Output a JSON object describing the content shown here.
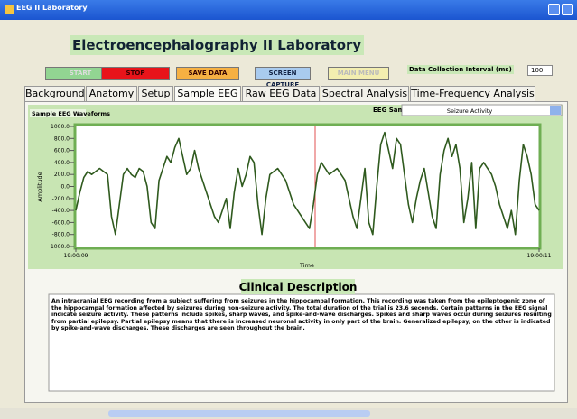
{
  "window": {
    "title": "EEG II Laboratory"
  },
  "header": {
    "title": "Electroencephalography II Laboratory"
  },
  "buttons": [
    "START",
    "STOP",
    "SAVE DATA",
    "SCREEN CAPTURE",
    "MAIN MENU"
  ],
  "interval": {
    "label": "Data Collection Interval (ms)",
    "value": "100"
  },
  "tabs": [
    "Background",
    "Anatomy",
    "Setup",
    "Sample EEG",
    "Raw EEG Data",
    "Spectral Analysis",
    "Time-Frequency Analysis"
  ],
  "samples": {
    "label": "EEG Samples",
    "value": "Seizure Activity"
  },
  "chart_data": {
    "type": "line",
    "title": "Sample EEG Waveforms",
    "y_label": "Amplitude",
    "x_label": "Time",
    "xticks": [
      "19:00:09",
      "19:00:11"
    ],
    "ylim": [
      -1000,
      1000
    ],
    "yticks": [
      {
        "value": 1000,
        "label": "1000.0"
      },
      {
        "value": 800,
        "label": "800.0"
      },
      {
        "value": 600,
        "label": "600.0"
      },
      {
        "value": 400,
        "label": "400.0"
      },
      {
        "value": 200,
        "label": "200.0"
      },
      {
        "value": 0,
        "label": "0.0"
      },
      {
        "value": -200,
        "label": "-200.0"
      },
      {
        "value": -400,
        "label": "-400.0"
      },
      {
        "value": -600,
        "label": "-600.0"
      },
      {
        "value": -800,
        "label": "-800.0"
      },
      {
        "value": -1000,
        "label": "-1000.0"
      }
    ],
    "series": [
      {
        "color": "#2f5a1e",
        "values": [
          -400,
          -100,
          150,
          250,
          200,
          250,
          300,
          250,
          200,
          -500,
          -800,
          -300,
          200,
          300,
          200,
          150,
          300,
          250,
          0,
          -600,
          -700,
          100,
          300,
          500,
          400,
          650,
          800,
          500,
          200,
          300,
          600,
          300,
          100,
          -100,
          -300,
          -500,
          -600,
          -400,
          -200,
          -700,
          -100,
          300,
          0,
          200,
          500,
          400,
          -300,
          -800,
          -200,
          200,
          250,
          300,
          200,
          100,
          -100,
          -300,
          -400,
          -500,
          -600,
          -700,
          -300,
          200,
          400,
          300,
          200,
          250,
          300,
          200,
          100,
          -200,
          -500,
          -700,
          -200,
          300,
          -600,
          -800,
          0,
          700,
          900,
          600,
          300,
          800,
          700,
          200,
          -300,
          -600,
          -200,
          100,
          300,
          -100,
          -500,
          -700,
          200,
          600,
          800,
          500,
          700,
          300,
          -600,
          -200,
          400,
          -700,
          300,
          400,
          300,
          200,
          0,
          -300,
          -500,
          -700,
          -400,
          -800,
          100,
          700,
          500,
          200,
          -300,
          -400
        ]
      }
    ]
  },
  "clinical": {
    "title": "Clinical Description",
    "text": "An intracranial EEG recording from a subject suffering from seizures in the hippocampal formation.  This recording was taken from the epileptogenic zone of the hippocampal formation affected by seizures during non-seizure activity.  The total duration of the trial is 23.6 seconds.  Certain patterns in the EEG signal indicate seizure activity.  These patterns include spikes, sharp waves, and spike-and-wave discharges.  Spikes and sharp waves occur during seizures resulting from partial epilepsy.  Partial epilepsy means that there is increased neuronal activity in only part of the brain.  Generalized epilepsy, on the other is indicated by spike-and-wave discharges.  These discharges are seen throughout the brain."
  }
}
